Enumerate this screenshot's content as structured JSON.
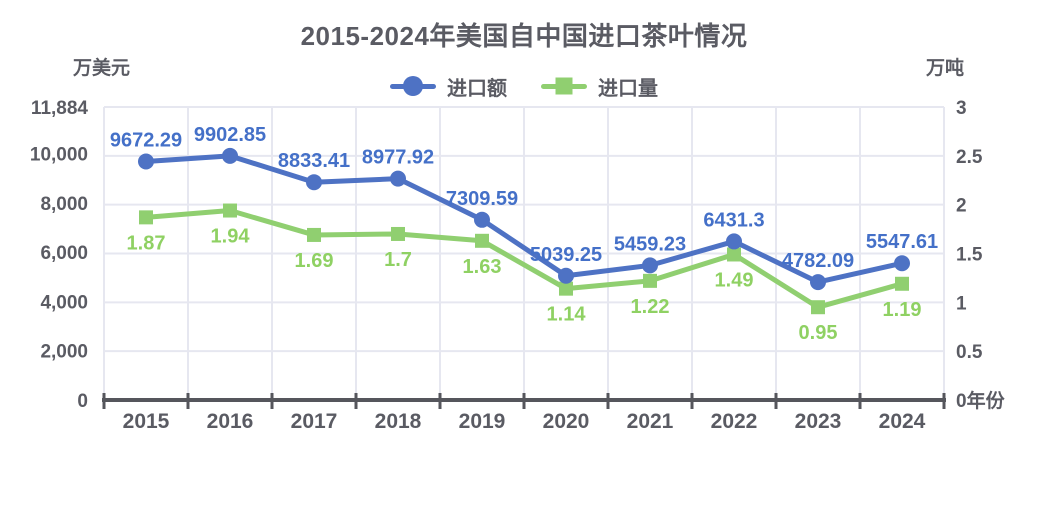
{
  "colors": {
    "background": "#ffffff",
    "text_gray": "#5a5b63",
    "grid": "#e6e7f0",
    "axis": "#55565c"
  },
  "chart_data": {
    "type": "line",
    "title": "2015-2024年美国自中国进口茶叶情况",
    "categories": [
      "2015",
      "2016",
      "2017",
      "2018",
      "2019",
      "2020",
      "2021",
      "2022",
      "2023",
      "2024"
    ],
    "x_axis_title": "年份",
    "grid": true,
    "legend_position": "top",
    "left_axis": {
      "unit": "万美元",
      "min": 0,
      "max": 11884,
      "tick_labels": [
        "11,884",
        "10,000",
        "8,000",
        "6,000",
        "4,000",
        "2,000",
        "0"
      ],
      "tick_values": [
        11884,
        10000,
        8000,
        6000,
        4000,
        2000,
        0
      ]
    },
    "right_axis": {
      "unit": "万吨",
      "min": 0,
      "max": 3,
      "tick_labels": [
        "3",
        "2.5",
        "2",
        "1.5",
        "1",
        "0.5",
        "0"
      ],
      "tick_values": [
        3,
        2.5,
        2,
        1.5,
        1,
        0.5,
        0
      ]
    },
    "series": [
      {
        "id": "import-value",
        "name": "进口额",
        "axis": "left",
        "marker": "circle",
        "color": "#4e72c4",
        "label_color": "#4470c8",
        "label_position": "above",
        "values": [
          9672.29,
          9902.85,
          8833.41,
          8977.92,
          7309.59,
          5039.25,
          5459.23,
          6431.3,
          4782.09,
          5547.61
        ],
        "labels": [
          "9672.29",
          "9902.85",
          "8833.41",
          "8977.92",
          "7309.59",
          "5039.25",
          "5459.23",
          "6431.3",
          "4782.09",
          "5547.61"
        ]
      },
      {
        "id": "import-volume",
        "name": "进口量",
        "axis": "right",
        "marker": "square",
        "color": "#90cf70",
        "label_color": "#8fd163",
        "label_position": "below",
        "values": [
          1.87,
          1.94,
          1.69,
          1.7,
          1.63,
          1.14,
          1.22,
          1.49,
          0.95,
          1.19
        ],
        "labels": [
          "1.87",
          "1.94",
          "1.69",
          "1.7",
          "1.63",
          "1.14",
          "1.22",
          "1.49",
          "0.95",
          "1.19"
        ]
      }
    ]
  }
}
